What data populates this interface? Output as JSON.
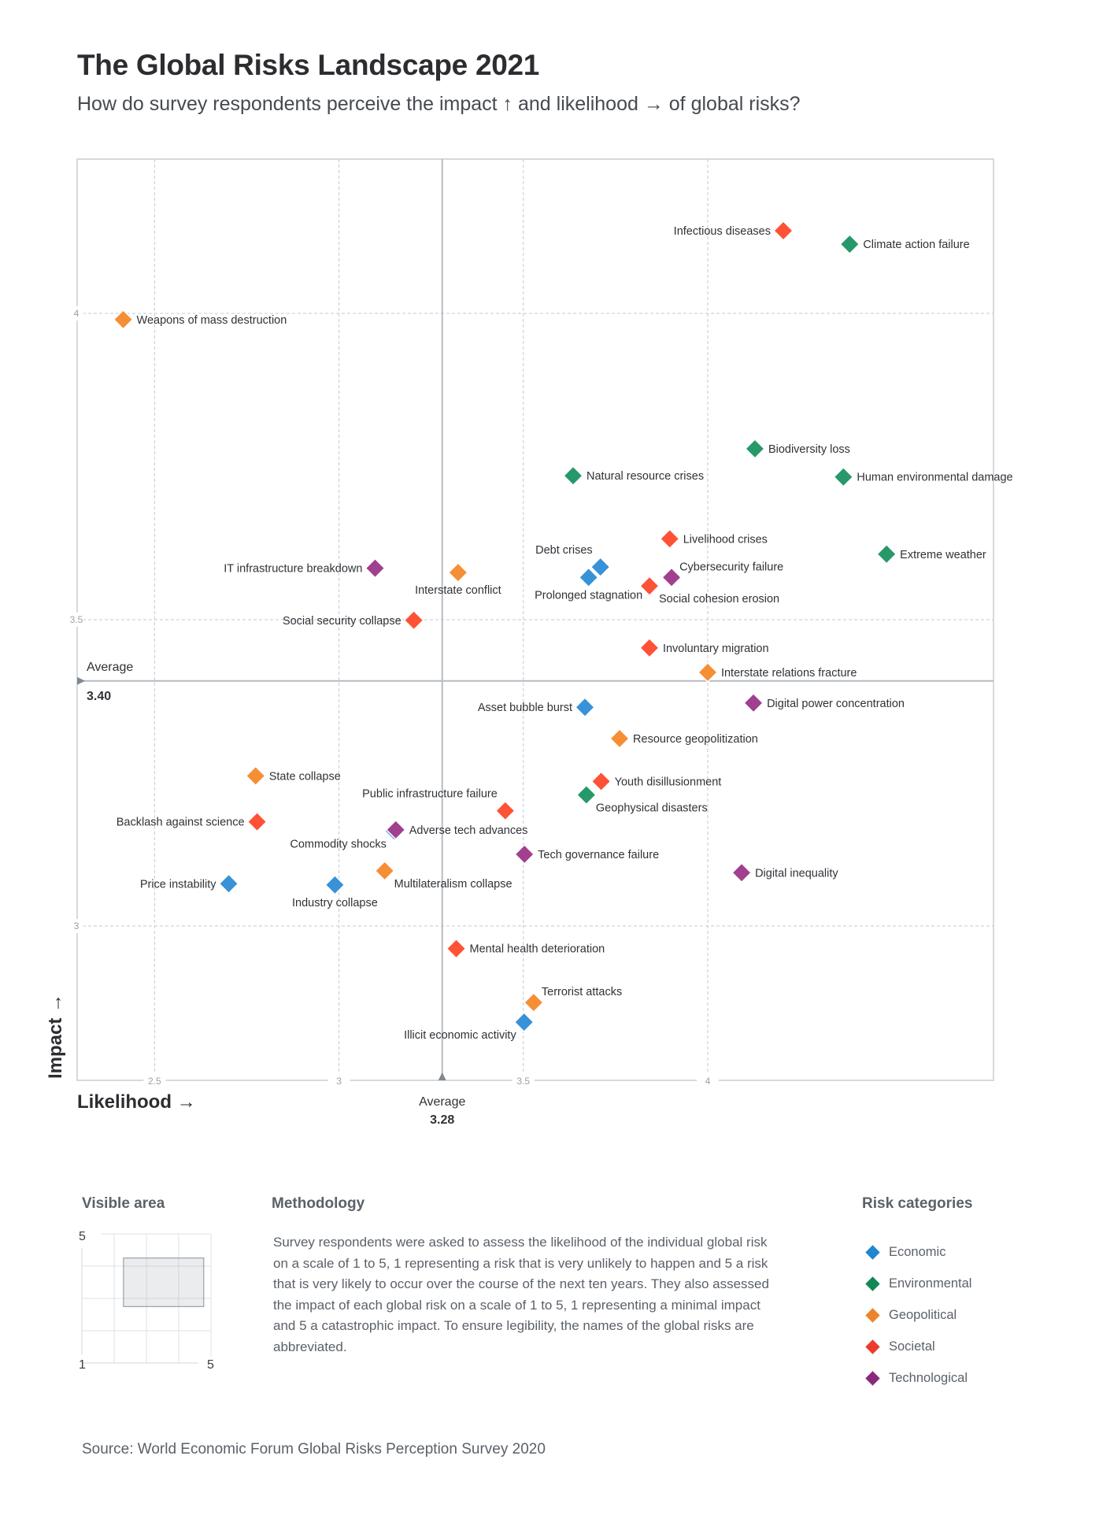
{
  "header": {
    "title": "The Global Risks Landscape 2021",
    "subtitle": "How do survey respondents perceive the impact ↑ and likelihood → of global risks?"
  },
  "chart_data": {
    "type": "scatter",
    "title": "The Global Risks Landscape 2021",
    "subtitle": "How do survey respondents perceive the impact ↑ and likelihood → of global risks?",
    "xlabel": "Likelihood →",
    "ylabel": "Impact →",
    "xlim": [
      2.29,
      4.775
    ],
    "ylim": [
      2.748,
      4.252
    ],
    "x_ticks": [
      2.5,
      3,
      3.5,
      4
    ],
    "x_tick_labels": [
      "2.5",
      "3",
      "3.5",
      "4"
    ],
    "y_ticks": [
      3,
      3.5,
      4
    ],
    "y_tick_labels": [
      "3",
      "3.5",
      "4"
    ],
    "grid": true,
    "x_average": {
      "label": "Average",
      "value": 3.28,
      "value_label": "3.28"
    },
    "y_average": {
      "label": "Average",
      "value": 3.4,
      "value_label": "3.40"
    },
    "legend_title": "Risk categories",
    "legend_position": "bottom-right",
    "categories": [
      {
        "name": "Economic",
        "color": "#3792d8"
      },
      {
        "name": "Environmental",
        "color": "#27986a"
      },
      {
        "name": "Geopolitical",
        "color": "#f68e35"
      },
      {
        "name": "Societal",
        "color": "#fd5236"
      },
      {
        "name": "Technological",
        "color": "#a1408f"
      }
    ],
    "points": [
      {
        "name": "Weapons of mass destruction",
        "category": "Geopolitical",
        "likelihood": 2.415,
        "impact": 3.99,
        "label_side": "right"
      },
      {
        "name": "Infectious diseases",
        "category": "Societal",
        "likelihood": 4.205,
        "impact": 4.135,
        "label_side": "left"
      },
      {
        "name": "Climate action failure",
        "category": "Environmental",
        "likelihood": 4.385,
        "impact": 4.113,
        "label_side": "right"
      },
      {
        "name": "Biodiversity loss",
        "category": "Environmental",
        "likelihood": 4.128,
        "impact": 3.779,
        "label_side": "right"
      },
      {
        "name": "Natural resource crises",
        "category": "Environmental",
        "likelihood": 3.635,
        "impact": 3.735,
        "label_side": "right"
      },
      {
        "name": "Human environmental damage",
        "category": "Environmental",
        "likelihood": 4.368,
        "impact": 3.733,
        "label_side": "right"
      },
      {
        "name": "Livelihood crises",
        "category": "Societal",
        "likelihood": 3.897,
        "impact": 3.632,
        "label_side": "right"
      },
      {
        "name": "Extreme weather",
        "category": "Environmental",
        "likelihood": 4.485,
        "impact": 3.607,
        "label_side": "right"
      },
      {
        "name": "Debt crises",
        "category": "Economic",
        "likelihood": 3.709,
        "impact": 3.586,
        "label_side": "top-left"
      },
      {
        "name": "Prolonged stagnation",
        "category": "Economic",
        "likelihood": 3.677,
        "impact": 3.569,
        "label_side": "bottom"
      },
      {
        "name": "Cybersecurity failure",
        "category": "Technological",
        "likelihood": 3.902,
        "impact": 3.569,
        "label_side": "top-right"
      },
      {
        "name": "Social cohesion erosion",
        "category": "Societal",
        "likelihood": 3.842,
        "impact": 3.555,
        "label_side": "bottom-right"
      },
      {
        "name": "IT infrastructure breakdown",
        "category": "Technological",
        "likelihood": 3.098,
        "impact": 3.584,
        "label_side": "left"
      },
      {
        "name": "Interstate conflict",
        "category": "Geopolitical",
        "likelihood": 3.323,
        "impact": 3.577,
        "label_side": "bottom"
      },
      {
        "name": "Social security collapse",
        "category": "Societal",
        "likelihood": 3.203,
        "impact": 3.499,
        "label_side": "left"
      },
      {
        "name": "Involuntary migration",
        "category": "Societal",
        "likelihood": 3.842,
        "impact": 3.454,
        "label_side": "right"
      },
      {
        "name": "Interstate relations fracture",
        "category": "Geopolitical",
        "likelihood": 4.0,
        "impact": 3.414,
        "label_side": "right"
      },
      {
        "name": "Asset bubble burst",
        "category": "Economic",
        "likelihood": 3.667,
        "impact": 3.357,
        "label_side": "left"
      },
      {
        "name": "Digital power concentration",
        "category": "Technological",
        "likelihood": 4.124,
        "impact": 3.364,
        "label_side": "right"
      },
      {
        "name": "Resource geopolitization",
        "category": "Geopolitical",
        "likelihood": 3.761,
        "impact": 3.306,
        "label_side": "right"
      },
      {
        "name": "State collapse",
        "category": "Geopolitical",
        "likelihood": 2.774,
        "impact": 3.245,
        "label_side": "right"
      },
      {
        "name": "Youth disillusionment",
        "category": "Societal",
        "likelihood": 3.711,
        "impact": 3.236,
        "label_side": "right"
      },
      {
        "name": "Geophysical disasters",
        "category": "Environmental",
        "likelihood": 3.671,
        "impact": 3.214,
        "label_side": "bottom-right"
      },
      {
        "name": "Public infrastructure failure",
        "category": "Societal",
        "likelihood": 3.451,
        "impact": 3.188,
        "label_side": "top-left"
      },
      {
        "name": "Backlash against science",
        "category": "Societal",
        "likelihood": 2.778,
        "impact": 3.17,
        "label_side": "left"
      },
      {
        "name": "Commodity shocks",
        "category": "Economic",
        "likelihood": 3.15,
        "impact": 3.155,
        "label_side": "bottom-left"
      },
      {
        "name": "Adverse tech advances",
        "category": "Technological",
        "likelihood": 3.154,
        "impact": 3.157,
        "label_side": "right"
      },
      {
        "name": "Tech governance failure",
        "category": "Technological",
        "likelihood": 3.503,
        "impact": 3.117,
        "label_side": "right"
      },
      {
        "name": "Multilateralism collapse",
        "category": "Geopolitical",
        "likelihood": 3.124,
        "impact": 3.09,
        "label_side": "bottom-right"
      },
      {
        "name": "Digital inequality",
        "category": "Technological",
        "likelihood": 4.092,
        "impact": 3.087,
        "label_side": "right"
      },
      {
        "name": "Price instability",
        "category": "Economic",
        "likelihood": 2.701,
        "impact": 3.069,
        "label_side": "left"
      },
      {
        "name": "Industry collapse",
        "category": "Economic",
        "likelihood": 2.989,
        "impact": 3.067,
        "label_side": "bottom"
      },
      {
        "name": "Mental health deterioration",
        "category": "Societal",
        "likelihood": 3.318,
        "impact": 2.963,
        "label_side": "right"
      },
      {
        "name": "Terrorist attacks",
        "category": "Geopolitical",
        "likelihood": 3.528,
        "impact": 2.875,
        "label_side": "top-right"
      },
      {
        "name": "Illicit economic activity",
        "category": "Economic",
        "likelihood": 3.502,
        "impact": 2.843,
        "label_side": "bottom-left"
      }
    ]
  },
  "visible_area": {
    "title": "Visible area",
    "range_min_label": "1",
    "range_max_label": "5",
    "y_max_label": "5",
    "likelihood_range": [
      2.29,
      4.775
    ],
    "impact_range": [
      2.748,
      4.252
    ],
    "full_range": [
      1,
      5
    ]
  },
  "methodology": {
    "title": "Methodology",
    "text": "Survey respondents were asked to assess the likelihood of the individual global risk on a scale of 1 to 5, 1 representing a risk that is very unlikely to happen and 5 a risk that is very likely to occur over the course of the next ten years. They also assessed the impact of each global risk on a scale of 1 to 5, 1 representing a minimal impact and 5 a catastrophic impact. To ensure legibility, the names of the global risks are abbreviated."
  },
  "legend": {
    "title": "Risk categories",
    "items": [
      {
        "label": "Economic",
        "color": "#1f86cf"
      },
      {
        "label": "Environmental",
        "color": "#138656"
      },
      {
        "label": "Geopolitical",
        "color": "#ec842a"
      },
      {
        "label": "Societal",
        "color": "#ee3a2c"
      },
      {
        "label": "Technological",
        "color": "#8a2a7b"
      }
    ]
  },
  "source": "Source: World Economic Forum Global Risks Perception Survey 2020"
}
